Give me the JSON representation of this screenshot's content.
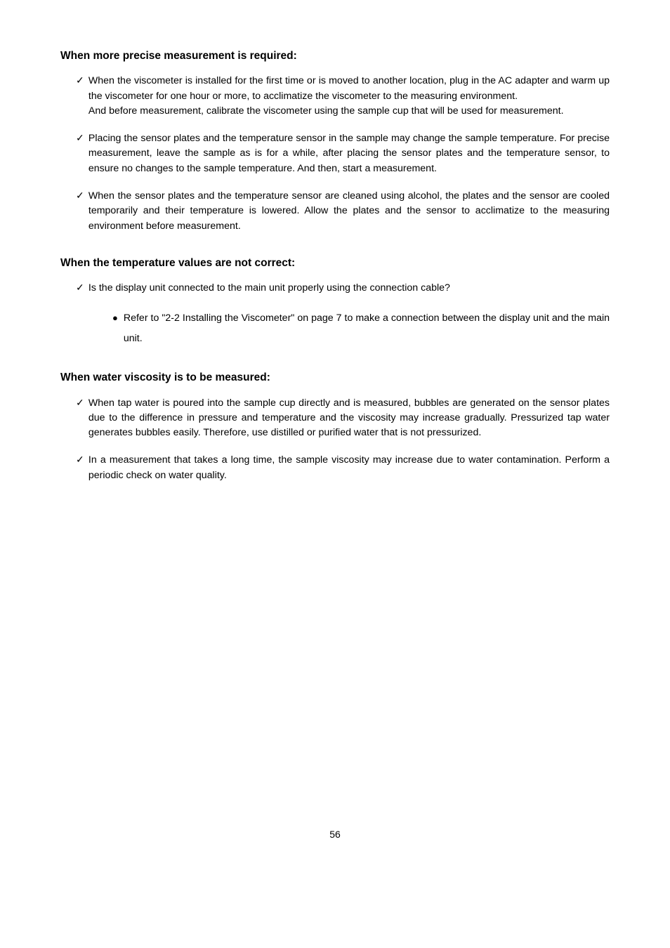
{
  "sections": [
    {
      "heading": "When more precise measurement is required:",
      "items": [
        {
          "type": "check",
          "paragraphs": [
            "When the viscometer is installed for the first time or is moved to another location, plug in the AC adapter and warm up the viscometer for one hour or more, to acclimatize the viscometer to the measuring environment.",
            "And before measurement, calibrate the viscometer using the sample cup that will be used for measurement."
          ]
        },
        {
          "type": "check",
          "paragraphs": [
            "Placing the sensor plates and the temperature sensor in the sample may change the sample temperature. For precise measurement, leave the sample as is for a while, after placing the sensor plates and the temperature sensor, to ensure no changes to the sample temperature. And then, start a measurement."
          ]
        },
        {
          "type": "check",
          "paragraphs": [
            "When the sensor plates and the temperature sensor are cleaned using alcohol, the plates and the sensor are cooled temporarily and their temperature is lowered. Allow the plates and the sensor to acclimatize to the measuring environment before measurement."
          ]
        }
      ]
    },
    {
      "heading": "When the temperature values are not correct:",
      "items": [
        {
          "type": "check",
          "paragraphs": [
            "Is the display unit connected to the main unit properly using the connection cable?"
          ]
        },
        {
          "type": "bullet",
          "paragraphs": [
            "Refer to \"2-2 Installing the Viscometer\" on page 7 to make a connection between the display unit and the main unit."
          ]
        }
      ]
    },
    {
      "heading": "When water viscosity is to be measured:",
      "items": [
        {
          "type": "check",
          "paragraphs": [
            "When tap water is poured into the sample cup directly and is measured, bubbles are generated on the sensor plates due to the difference in pressure and temperature and the viscosity may increase gradually. Pressurized tap water generates bubbles easily. Therefore, use distilled or purified water that is not pressurized."
          ]
        },
        {
          "type": "check",
          "paragraphs": [
            "In a measurement that takes a long time, the sample viscosity may increase due to water contamination. Perform a periodic check on water quality."
          ]
        }
      ]
    }
  ],
  "page_number": "56",
  "marks": {
    "check": "✓",
    "bullet": "●"
  },
  "colors": {
    "text": "#000000",
    "background": "#ffffff"
  }
}
